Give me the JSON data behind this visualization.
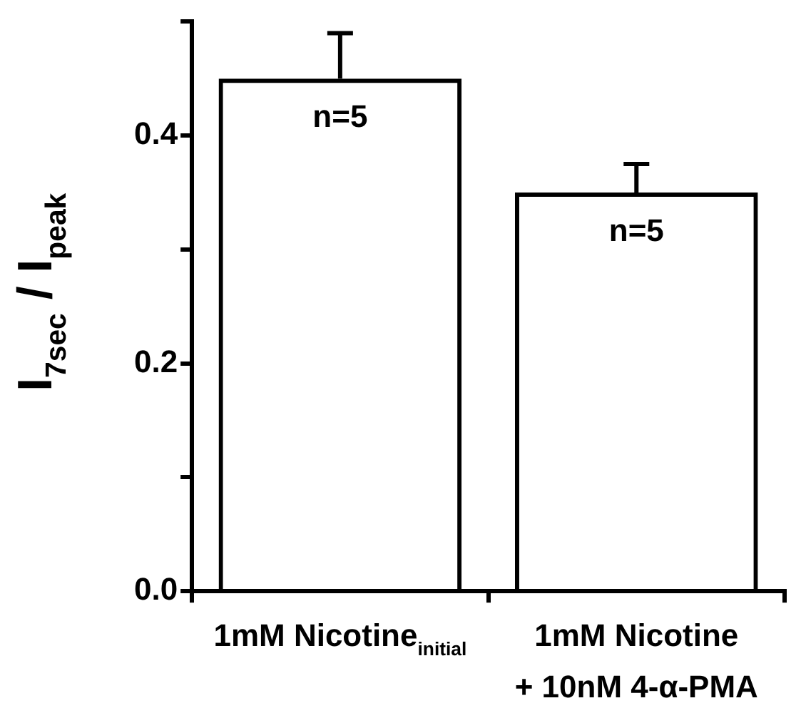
{
  "chart_data": {
    "type": "bar",
    "ylabel": "I$_{7sec}$ / I$_{peak}$",
    "categories": [
      "1mM Nicotine$_{initial}$",
      "1mM Nicotine\n+ 10nM 4-α-PMA"
    ],
    "values": [
      0.45,
      0.35
    ],
    "errors": [
      [
        0.45,
        0.49
      ],
      [
        0.35,
        0.375
      ]
    ],
    "color": "#000000",
    "ylim": [
      0,
      0.5
    ],
    "yticks": [
      {
        "value": 0,
        "label": "0.0"
      },
      {
        "value": 0.1,
        "label": null
      },
      {
        "value": 0.2,
        "label": "0.2"
      },
      {
        "value": 0.3,
        "label": null
      },
      {
        "value": 0.4,
        "label": "0.4"
      },
      {
        "value": 0.5,
        "label": null
      }
    ],
    "annotations": [
      "n=5",
      "n=5"
    ],
    "grid": false,
    "legend": false
  }
}
